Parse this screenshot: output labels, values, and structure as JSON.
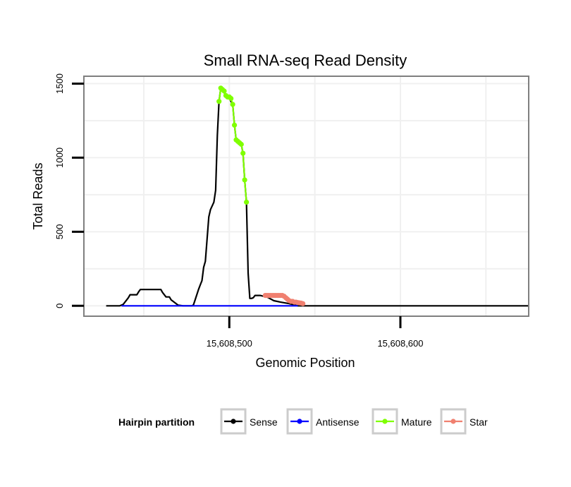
{
  "colors": {
    "sense": "#000000",
    "antisense": "#0000ff",
    "mature": "#7fff00",
    "star": "#f08070",
    "grid": "#f0f0f0",
    "panel_border": "#7f7f7f",
    "legend_key_border": "#cccccc"
  },
  "chart_data": {
    "type": "line",
    "title": "Small RNA-seq Read Density",
    "xlabel": "Genomic Position",
    "ylabel": "Total Reads",
    "xlim": [
      15608415,
      15608675
    ],
    "ylim": [
      -70,
      1550
    ],
    "x_ticks": [
      {
        "value": 15608500,
        "label": "15,608,500"
      },
      {
        "value": 15608600,
        "label": "15,608,600"
      }
    ],
    "y_ticks": [
      {
        "value": 0,
        "label": "0"
      },
      {
        "value": 500,
        "label": "500"
      },
      {
        "value": 1000,
        "label": "1000"
      },
      {
        "value": 1500,
        "label": "1500"
      }
    ],
    "grid": true,
    "legend": {
      "title": "Hairpin partition",
      "position": "bottom",
      "entries": [
        "Sense",
        "Antisense",
        "Mature",
        "Star"
      ]
    },
    "series": [
      {
        "name": "Sense",
        "type": "line",
        "x": [
          15608428,
          15608436,
          15608438,
          15608440,
          15608441,
          15608442,
          15608446,
          15608447,
          15608448,
          15608450,
          15608460,
          15608461,
          15608463,
          15608465,
          15608466,
          15608470,
          15608473,
          15608475,
          15608478,
          15608479,
          15608480,
          15608482,
          15608483,
          15608484,
          15608485,
          15608486,
          15608488,
          15608489,
          15608491,
          15608492,
          15608493,
          15608494,
          15608495,
          15608496,
          15608497,
          15608498,
          15608499,
          15608500,
          15608502,
          15608503,
          15608504,
          15608505,
          15608506,
          15608507,
          15608508,
          15608509,
          15608510,
          15608511,
          15608512,
          15608513,
          15608514,
          15608515,
          15608516,
          15608518,
          15608520,
          15608522,
          15608526,
          15608530,
          15608535,
          15608540,
          15608560,
          15608600,
          15608650,
          15608675
        ],
        "y": [
          0,
          0,
          10,
          40,
          55,
          75,
          75,
          95,
          110,
          110,
          110,
          90,
          60,
          60,
          40,
          5,
          0,
          0,
          0,
          5,
          40,
          110,
          140,
          170,
          260,
          300,
          600,
          650,
          700,
          780,
          1150,
          1380,
          1470,
          1450,
          1440,
          1420,
          1410,
          1400,
          1360,
          1220,
          1120,
          1110,
          1110,
          1090,
          1030,
          850,
          700,
          220,
          50,
          50,
          55,
          70,
          70,
          70,
          65,
          60,
          35,
          25,
          15,
          0,
          0,
          0,
          0,
          0
        ]
      },
      {
        "name": "Antisense",
        "type": "line",
        "x": [
          15608437,
          15608540
        ],
        "y": [
          0,
          0
        ]
      },
      {
        "name": "Mature",
        "type": "points",
        "x": [
          15608494,
          15608495,
          15608496,
          15608497,
          15608498,
          15608499,
          15608500,
          15608501,
          15608502,
          15608503,
          15608504,
          15608505,
          15608506,
          15608507,
          15608508,
          15608509,
          15608510
        ],
        "y": [
          1380,
          1470,
          1460,
          1450,
          1420,
          1410,
          1410,
          1400,
          1360,
          1220,
          1120,
          1110,
          1100,
          1090,
          1030,
          850,
          700
        ]
      },
      {
        "name": "Star",
        "type": "points",
        "x": [
          15608521,
          15608522,
          15608523,
          15608524,
          15608525,
          15608526,
          15608527,
          15608528,
          15608529,
          15608530,
          15608531,
          15608532,
          15608533,
          15608534,
          15608535,
          15608536,
          15608537,
          15608538,
          15608539,
          15608540,
          15608541,
          15608542,
          15608543
        ],
        "y": [
          70,
          70,
          70,
          70,
          70,
          70,
          70,
          70,
          70,
          70,
          70,
          65,
          55,
          45,
          35,
          30,
          30,
          25,
          25,
          22,
          20,
          18,
          15
        ]
      }
    ]
  }
}
